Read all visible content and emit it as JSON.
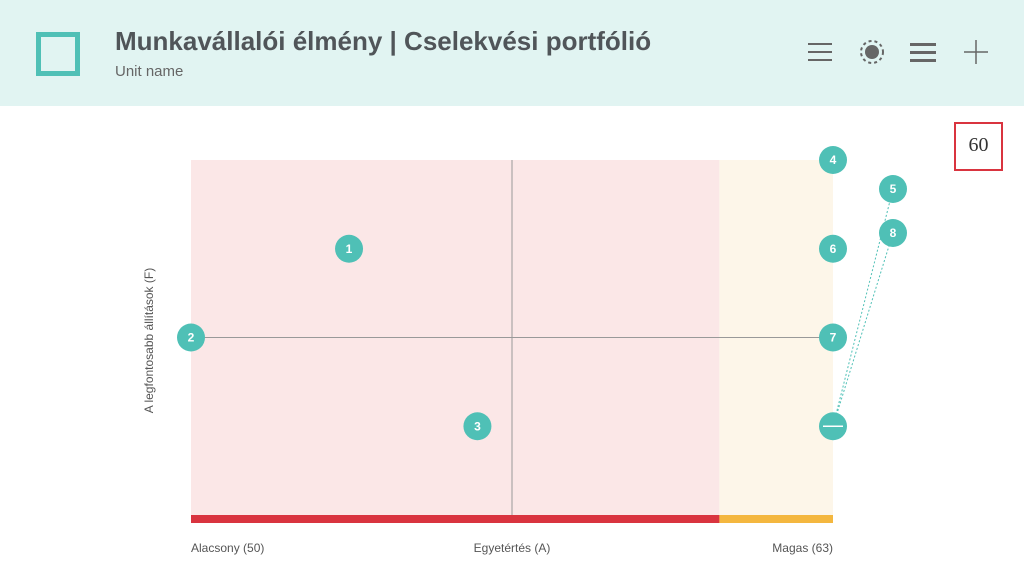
{
  "header": {
    "title": "Munkavállalói élmény | Cselekvési portfólió",
    "subtitle": "Unit name"
  },
  "badge": "60",
  "chart_data": {
    "type": "scatter",
    "y_label": "A legfontosabb állítások (F)",
    "x_labels": [
      "Alacsony (50)",
      "Egyetértés (A)",
      "Magas (63)"
    ],
    "xlim": [
      50,
      63
    ],
    "ylim": [
      0,
      4
    ],
    "xmid": 56.5,
    "ymid": 2,
    "zones": [
      {
        "from": 50,
        "to": 60.7,
        "color": "#fbe7e7",
        "bar": "#d9343f"
      },
      {
        "from": 60.7,
        "to": 63,
        "color": "#fdf6e9",
        "bar": "#f4b73f"
      }
    ],
    "color": "#4fc0b6",
    "labels": [
      "1",
      "2",
      "3",
      "4",
      "5",
      "6",
      "7",
      "8"
    ],
    "x": [
      53.2,
      50,
      55.8,
      63,
      63,
      63,
      63,
      63
    ],
    "values": [
      3,
      2,
      1,
      4,
      1,
      3,
      2,
      1
    ]
  }
}
